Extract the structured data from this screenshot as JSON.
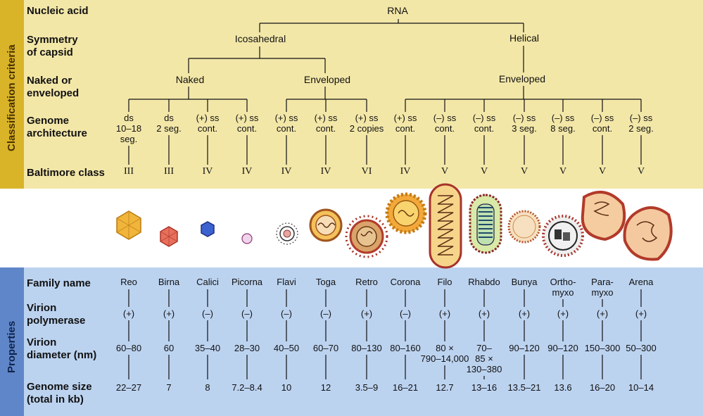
{
  "side": {
    "top": "Classification criteria",
    "bottom": "Properties"
  },
  "rows": {
    "nucleic": "Nucleic acid",
    "symmetry": [
      "Symmetry",
      "of capsid"
    ],
    "naked": [
      "Naked or",
      "enveloped"
    ],
    "genome": [
      "Genome",
      "architecture"
    ],
    "baltimore": "Baltimore class",
    "family": "Family name",
    "polymerase": [
      "Virion",
      "polymerase"
    ],
    "diameter": [
      "Virion",
      "diameter (nm)"
    ],
    "gsize": [
      "Genome size",
      "(total in kb)"
    ]
  },
  "tree": {
    "rna": "RNA",
    "icosahedral": "Icosahedral",
    "helical": "Helical",
    "naked": "Naked",
    "enveloped_ico": "Enveloped",
    "enveloped_hel": "Enveloped"
  },
  "columns": [
    {
      "genome": "ds\n10–18\nseg.",
      "baltimore": "III",
      "family": "Reo",
      "polymerase": "(+)",
      "diameter": "60–80",
      "gsize": "22–27"
    },
    {
      "genome": "ds\n2 seg.",
      "baltimore": "III",
      "family": "Birna",
      "polymerase": "(+)",
      "diameter": "60",
      "gsize": "7"
    },
    {
      "genome": "(+) ss\ncont.",
      "baltimore": "IV",
      "family": "Calici",
      "polymerase": "(–)",
      "diameter": "35–40",
      "gsize": "8"
    },
    {
      "genome": "(+) ss\ncont.",
      "baltimore": "IV",
      "family": "Picorna",
      "polymerase": "(–)",
      "diameter": "28–30",
      "gsize": "7.2–8.4"
    },
    {
      "genome": "(+) ss\ncont.",
      "baltimore": "IV",
      "family": "Flavi",
      "polymerase": "(–)",
      "diameter": "40–50",
      "gsize": "10"
    },
    {
      "genome": "(+) ss\ncont.",
      "baltimore": "IV",
      "family": "Toga",
      "polymerase": "(–)",
      "diameter": "60–70",
      "gsize": "12"
    },
    {
      "genome": "(+) ss\n2 copies",
      "baltimore": "VI",
      "family": "Retro",
      "polymerase": "(+)",
      "diameter": "80–130",
      "gsize": "3.5–9"
    },
    {
      "genome": "(+) ss\ncont.",
      "baltimore": "IV",
      "family": "Corona",
      "polymerase": "(–)",
      "diameter": "80–160",
      "gsize": "16–21"
    },
    {
      "genome": "(–) ss\ncont.",
      "baltimore": "V",
      "family": "Filo",
      "polymerase": "(+)",
      "diameter": "80 ×\n790–14,000",
      "gsize": "12.7"
    },
    {
      "genome": "(–) ss\ncont.",
      "baltimore": "V",
      "family": "Rhabdo",
      "polymerase": "(+)",
      "diameter": "70–\n85 ×\n130–380",
      "gsize": "13–16"
    },
    {
      "genome": "(–) ss\n3 seg.",
      "baltimore": "V",
      "family": "Bunya",
      "polymerase": "(+)",
      "diameter": "90–120",
      "gsize": "13.5–21"
    },
    {
      "genome": "(–) ss\n8 seg.",
      "baltimore": "V",
      "family": "Ortho-\nmyxo",
      "polymerase": "(+)",
      "diameter": "90–120",
      "gsize": "13.6"
    },
    {
      "genome": "(–) ss\ncont.",
      "baltimore": "V",
      "family": "Para-\nmyxo",
      "polymerase": "(+)",
      "diameter": "150–300",
      "gsize": "16–20"
    },
    {
      "genome": "(–) ss\n2 seg.",
      "baltimore": "V",
      "family": "Arena",
      "polymerase": "(+)",
      "diameter": "50–300",
      "gsize": "10–14"
    }
  ],
  "colors": {
    "criteria_bg": "#f3e7a8",
    "criteria_bar": "#d9b429",
    "properties_bg": "#bcd3f0",
    "properties_bar": "#5f86c9"
  }
}
